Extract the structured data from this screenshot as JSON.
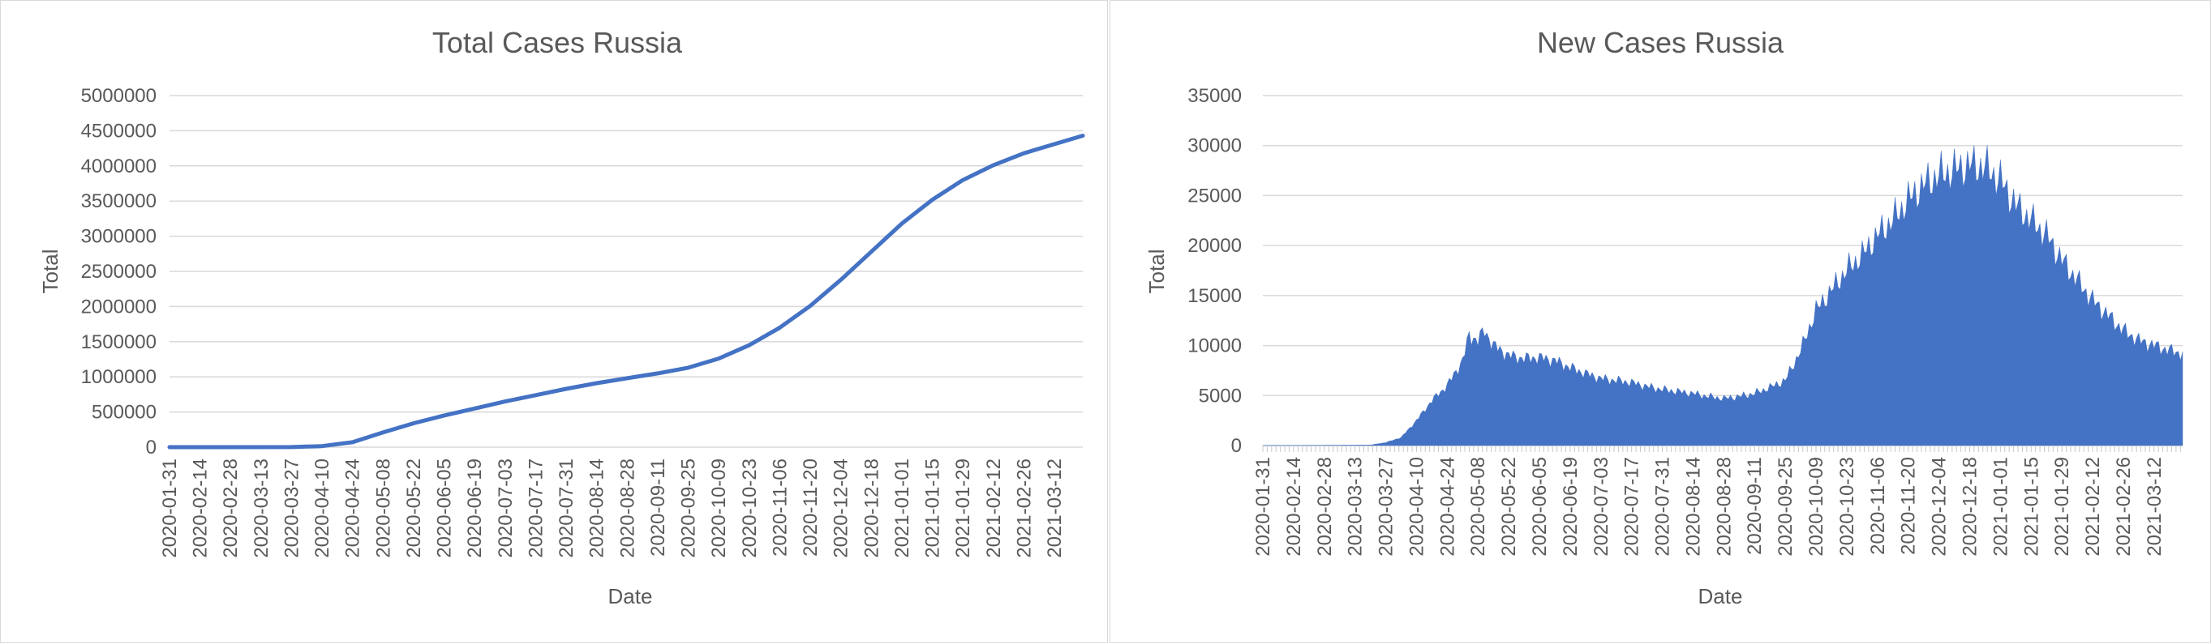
{
  "chart_data": [
    {
      "type": "line",
      "title": "Total Cases Russia",
      "xlabel": "Date",
      "ylabel": "Total",
      "ylim": [
        0,
        5000000
      ],
      "y_ticks": [
        0,
        500000,
        1000000,
        1500000,
        2000000,
        2500000,
        3000000,
        3500000,
        4000000,
        4500000,
        5000000
      ],
      "x_ticks": [
        "2020-01-31",
        "2020-02-14",
        "2020-02-28",
        "2020-03-13",
        "2020-03-27",
        "2020-04-10",
        "2020-04-24",
        "2020-05-08",
        "2020-05-22",
        "2020-06-05",
        "2020-06-19",
        "2020-07-03",
        "2020-07-17",
        "2020-07-31",
        "2020-08-14",
        "2020-08-28",
        "2020-09-11",
        "2020-09-25",
        "2020-10-09",
        "2020-10-23",
        "2020-11-06",
        "2020-11-20",
        "2020-12-04",
        "2020-12-18",
        "2021-01-01",
        "2021-01-15",
        "2021-01-29",
        "2021-02-12",
        "2021-02-26",
        "2021-03-12"
      ],
      "x_range": [
        "2020-01-31",
        "2021-03-25"
      ],
      "grid": true,
      "color": "#4472c4",
      "series": [
        {
          "x": [
            "2020-01-31",
            "2020-03-27",
            "2020-04-10",
            "2020-04-24",
            "2020-05-08",
            "2020-05-22",
            "2020-06-05",
            "2020-06-19",
            "2020-07-03",
            "2020-07-17",
            "2020-07-31",
            "2020-08-14",
            "2020-08-28",
            "2020-09-11",
            "2020-09-25",
            "2020-10-09",
            "2020-10-23",
            "2020-11-06",
            "2020-11-20",
            "2020-12-04",
            "2020-12-18",
            "2021-01-01",
            "2021-01-15",
            "2021-01-29",
            "2021-02-12",
            "2021-02-26",
            "2021-03-12",
            "2021-03-25"
          ],
          "y": [
            0,
            1000,
            15000,
            70000,
            210000,
            340000,
            450000,
            550000,
            650000,
            740000,
            830000,
            910000,
            980000,
            1050000,
            1130000,
            1260000,
            1450000,
            1700000,
            2010000,
            2380000,
            2780000,
            3180000,
            3520000,
            3800000,
            4010000,
            4180000,
            4310000,
            4430000
          ]
        }
      ]
    },
    {
      "type": "area",
      "title": "New Cases Russia",
      "xlabel": "Date",
      "ylabel": "Total",
      "ylim": [
        0,
        35000
      ],
      "y_ticks": [
        0,
        5000,
        10000,
        15000,
        20000,
        25000,
        30000,
        35000
      ],
      "x_ticks": [
        "2020-01-31",
        "2020-02-14",
        "2020-02-28",
        "2020-03-13",
        "2020-03-27",
        "2020-04-10",
        "2020-04-24",
        "2020-05-08",
        "2020-05-22",
        "2020-06-05",
        "2020-06-19",
        "2020-07-03",
        "2020-07-17",
        "2020-07-31",
        "2020-08-14",
        "2020-08-28",
        "2020-09-11",
        "2020-09-25",
        "2020-10-09",
        "2020-10-23",
        "2020-11-06",
        "2020-11-20",
        "2020-12-04",
        "2020-12-18",
        "2021-01-01",
        "2021-01-15",
        "2021-01-29",
        "2021-02-12",
        "2021-02-26",
        "2021-03-12"
      ],
      "x_range": [
        "2020-01-31",
        "2021-03-25"
      ],
      "grid": true,
      "color": "#4472c4",
      "series": [
        {
          "x": [
            "2020-01-31",
            "2020-03-20",
            "2020-03-27",
            "2020-04-03",
            "2020-04-10",
            "2020-04-17",
            "2020-04-24",
            "2020-05-01",
            "2020-05-04",
            "2020-05-08",
            "2020-05-11",
            "2020-05-15",
            "2020-05-22",
            "2020-05-29",
            "2020-06-05",
            "2020-06-12",
            "2020-06-19",
            "2020-06-26",
            "2020-07-03",
            "2020-07-10",
            "2020-07-17",
            "2020-07-24",
            "2020-07-31",
            "2020-08-07",
            "2020-08-14",
            "2020-08-21",
            "2020-08-28",
            "2020-09-04",
            "2020-09-11",
            "2020-09-18",
            "2020-09-25",
            "2020-10-02",
            "2020-10-09",
            "2020-10-16",
            "2020-10-23",
            "2020-10-30",
            "2020-11-06",
            "2020-11-13",
            "2020-11-20",
            "2020-11-27",
            "2020-12-04",
            "2020-12-11",
            "2020-12-18",
            "2020-12-25",
            "2021-01-01",
            "2021-01-08",
            "2021-01-15",
            "2021-01-22",
            "2021-01-29",
            "2021-02-05",
            "2021-02-12",
            "2021-02-19",
            "2021-02-26",
            "2021-03-05",
            "2021-03-12",
            "2021-03-19",
            "2021-03-25"
          ],
          "y": [
            0,
            50,
            300,
            800,
            2500,
            4500,
            6000,
            8500,
            11000,
            10500,
            11500,
            10000,
            9000,
            8700,
            8800,
            8500,
            7800,
            7200,
            6700,
            6500,
            6300,
            5900,
            5600,
            5400,
            5200,
            4900,
            4700,
            4900,
            5200,
            5800,
            6500,
            9500,
            13500,
            15500,
            17500,
            19000,
            21000,
            22500,
            24500,
            26000,
            27000,
            27500,
            28000,
            27800,
            26500,
            24000,
            22500,
            21000,
            18500,
            16500,
            14500,
            13000,
            11500,
            10500,
            10000,
            9500,
            9200
          ]
        }
      ]
    }
  ]
}
